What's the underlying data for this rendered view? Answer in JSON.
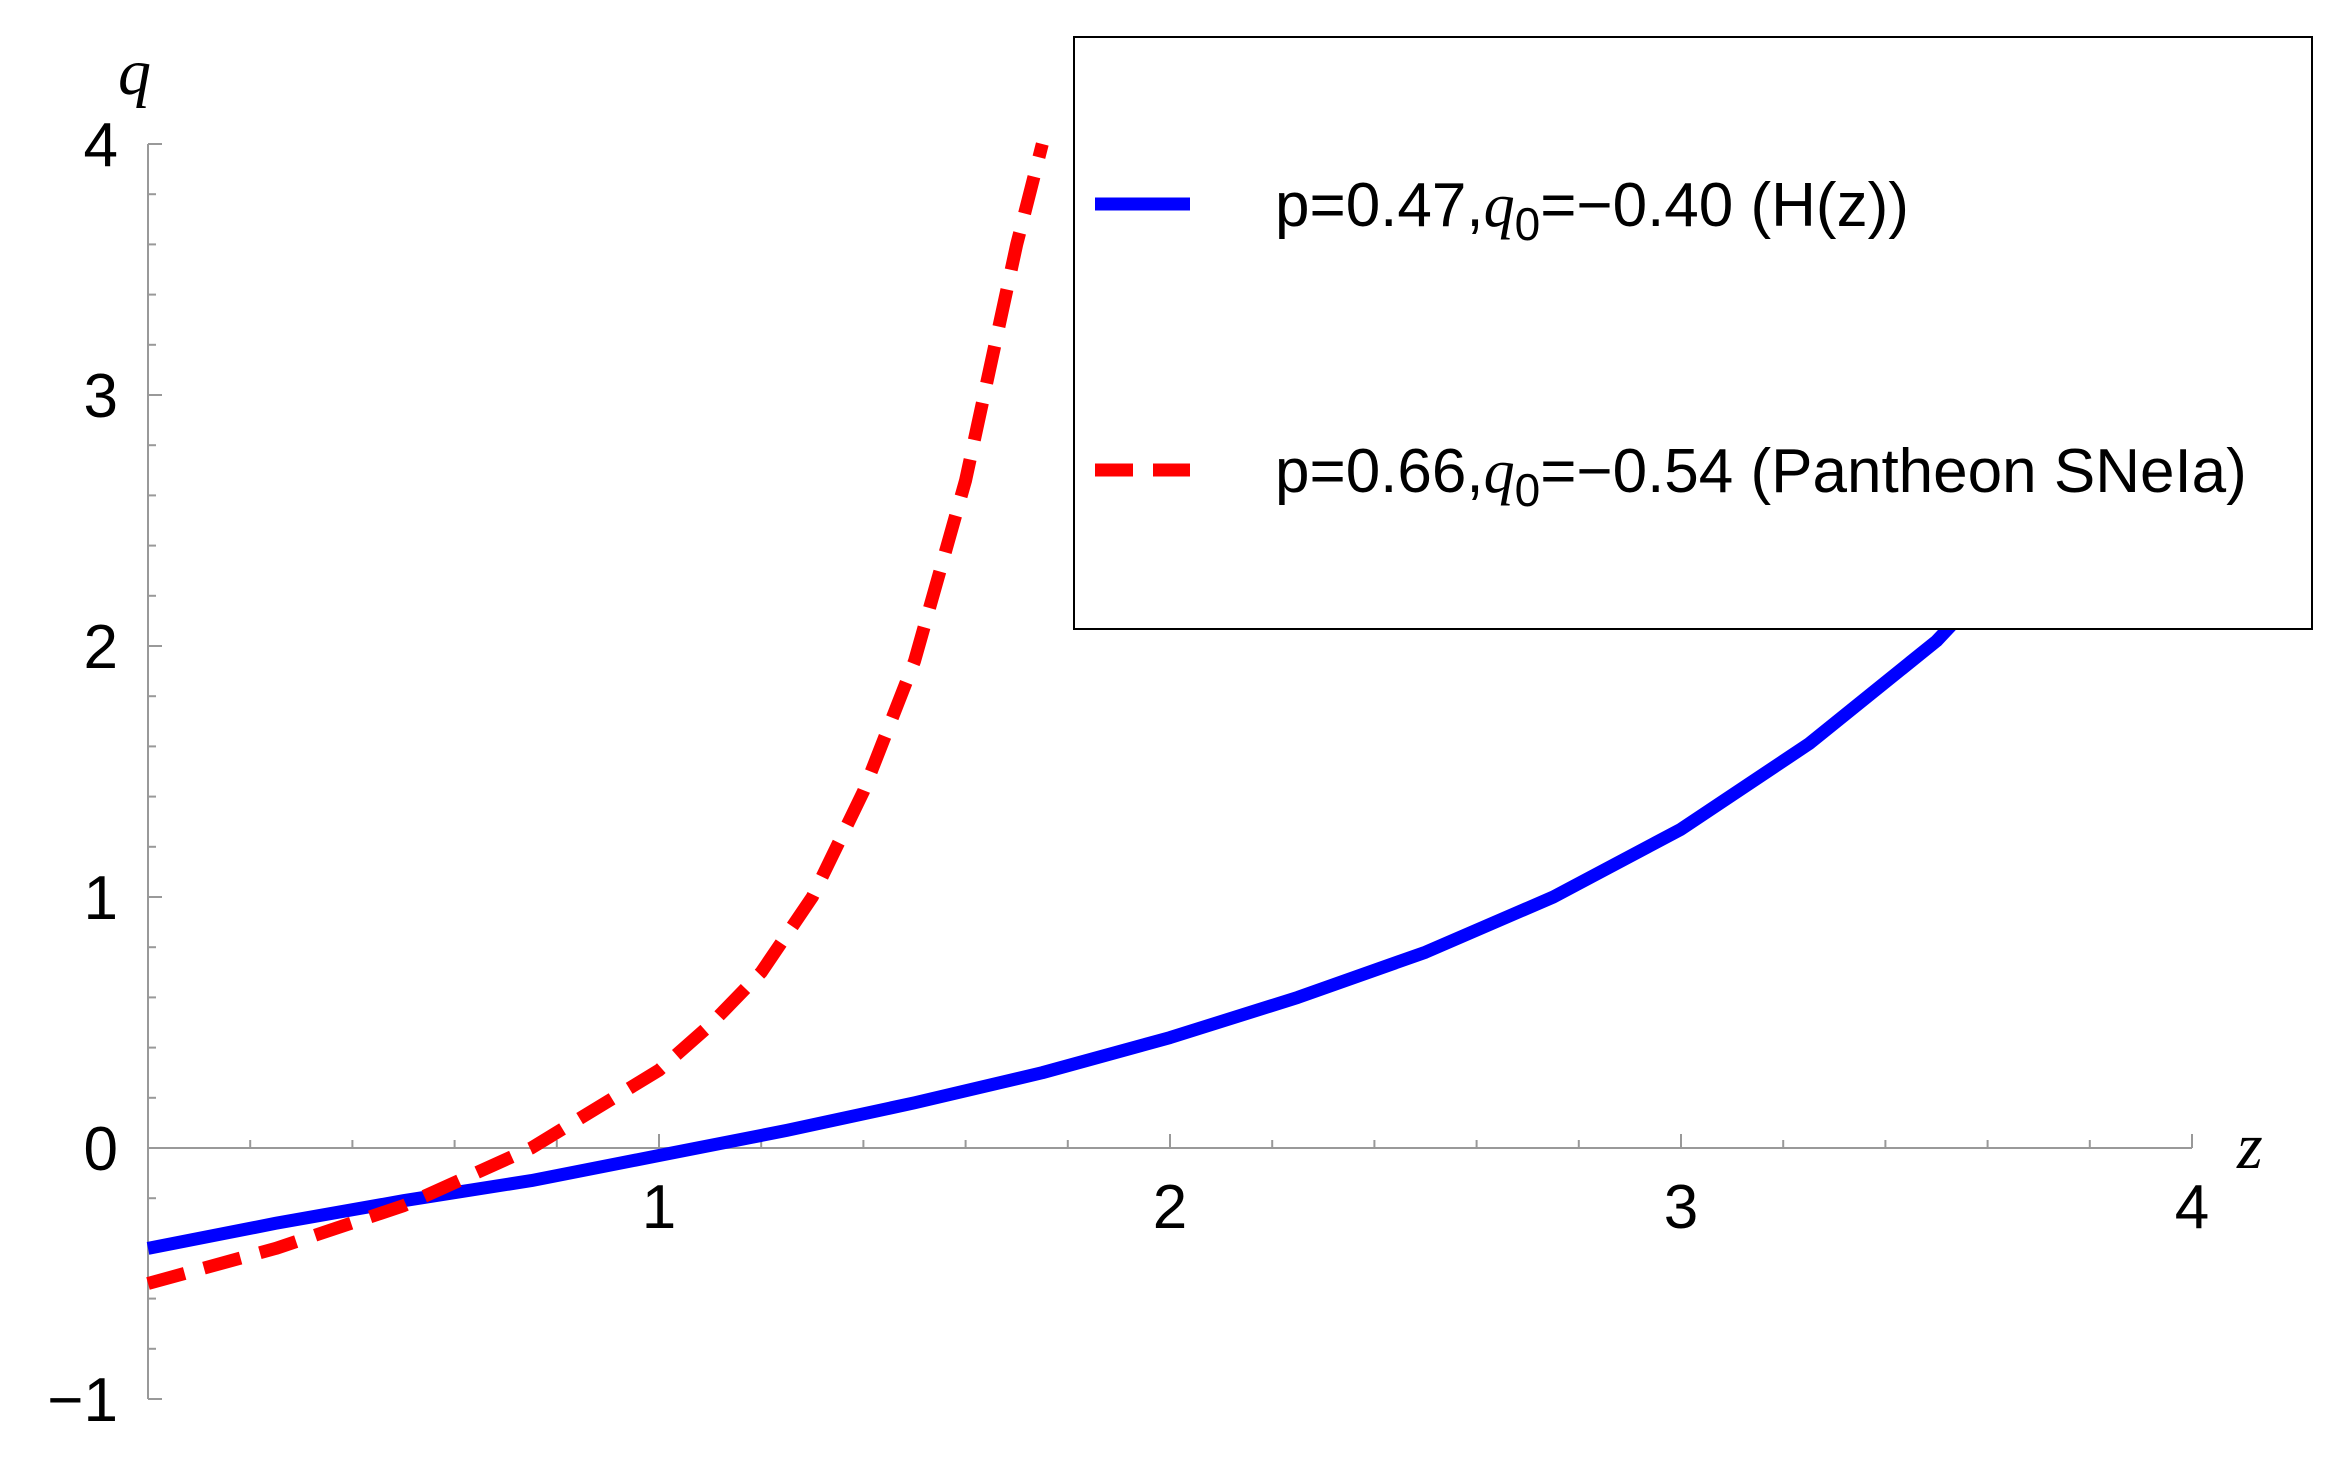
{
  "chart_data": {
    "type": "line",
    "xlabel": "z",
    "ylabel": "q",
    "xlim": [
      0,
      4
    ],
    "ylim": [
      -1,
      4
    ],
    "x_ticks": [
      "1",
      "2",
      "3",
      "4"
    ],
    "y_ticks": [
      "−1",
      "0",
      "1",
      "2",
      "3",
      "4"
    ],
    "legend_position": "top-right",
    "grid": false,
    "series": [
      {
        "name": "p=0.47,q0=−0.40 (H(z))",
        "legend": {
          "pre": "p=0.47,",
          "sym": "q",
          "sub": "0",
          "post": "=−0.40 (H(z))"
        },
        "color": "#0000ff",
        "dash": "solid",
        "q0": -0.4,
        "p": 0.47,
        "x": [
          0,
          0.25,
          0.5,
          0.75,
          1.0,
          1.25,
          1.5,
          1.75,
          2.0,
          2.25,
          2.5,
          2.75,
          3.0,
          3.25,
          3.5,
          3.56
        ],
        "y": [
          -0.4,
          -0.3,
          -0.21,
          -0.13,
          -0.03,
          0.07,
          0.18,
          0.3,
          0.44,
          0.6,
          0.78,
          1.0,
          1.27,
          1.61,
          2.02,
          2.15
        ]
      },
      {
        "name": "p=0.66,q0=−0.54 (Pantheon SNeIa)",
        "legend": {
          "pre": "p=0.66,",
          "sym": "q",
          "sub": "0",
          "post": "=−0.54 (Pantheon SNeIa)"
        },
        "color": "#ff0000",
        "dash": "dashed",
        "q0": -0.54,
        "p": 0.66,
        "x": [
          0,
          0.25,
          0.5,
          0.75,
          1.0,
          1.1,
          1.2,
          1.3,
          1.4,
          1.5,
          1.6,
          1.7,
          1.75
        ],
        "y": [
          -0.54,
          -0.4,
          -0.23,
          0.0,
          0.31,
          0.49,
          0.7,
          1.0,
          1.42,
          1.94,
          2.66,
          3.6,
          4.0
        ]
      }
    ]
  }
}
